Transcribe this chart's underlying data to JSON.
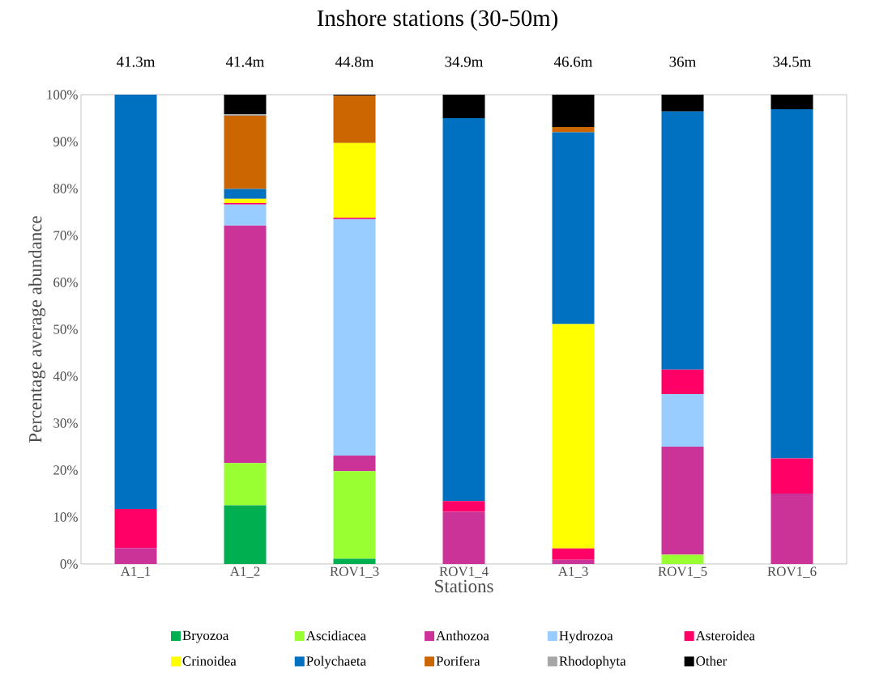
{
  "chart_data": {
    "type": "bar",
    "stacked": true,
    "title": "Inshore stations (30-50m)",
    "xlabel": "Stations",
    "ylabel": "Percentage average abundance",
    "categories": [
      "A1_1",
      "A1_2",
      "ROV1_3",
      "ROV1_4",
      "A1_3",
      "ROV1_5",
      "ROV1_6"
    ],
    "ylim": [
      0,
      100
    ],
    "yticks": [
      {
        "value": 0,
        "label": "0%"
      },
      {
        "value": 10,
        "label": "10%"
      },
      {
        "value": 20,
        "label": "20%"
      },
      {
        "value": 30,
        "label": "30%"
      },
      {
        "value": 40,
        "label": "40%"
      },
      {
        "value": 50,
        "label": "50%"
      },
      {
        "value": 60,
        "label": "60%"
      },
      {
        "value": 70,
        "label": "70%"
      },
      {
        "value": 80,
        "label": "80%"
      },
      {
        "value": 90,
        "label": "90%"
      },
      {
        "value": 100,
        "label": "100%"
      }
    ],
    "legend": "bottom",
    "series": [
      {
        "name": "Bryozoa",
        "color": "#00b050",
        "values": [
          0,
          12.5,
          1.1,
          0,
          0,
          0,
          0
        ]
      },
      {
        "name": "Ascidiacea",
        "color": "#99ff33",
        "values": [
          0,
          9.0,
          18.7,
          0,
          0,
          2.0,
          0
        ]
      },
      {
        "name": "Anthozoa",
        "color": "#cc3399",
        "values": [
          3.4,
          50.6,
          3.3,
          11.1,
          0.9,
          23.0,
          15.0
        ]
      },
      {
        "name": "Hydrozoa",
        "color": "#99ccff",
        "values": [
          0,
          4.5,
          50.4,
          0,
          0,
          11.2,
          0
        ]
      },
      {
        "name": "Asteroidea",
        "color": "#ff0066",
        "values": [
          8.3,
          0.3,
          0.3,
          2.3,
          2.4,
          5.2,
          7.5
        ]
      },
      {
        "name": "Crinoidea",
        "color": "#ffff00",
        "values": [
          0,
          0.9,
          15.9,
          0,
          47.8,
          0,
          0
        ]
      },
      {
        "name": "Polychaeta",
        "color": "#0070c0",
        "values": [
          88.3,
          2.1,
          0,
          81.6,
          40.9,
          55.0,
          74.4
        ]
      },
      {
        "name": "Porifera",
        "color": "#cc6600",
        "values": [
          0,
          15.6,
          10.1,
          0,
          1.1,
          0,
          0
        ]
      },
      {
        "name": "Rhodophyta",
        "color": "#a6a6a6",
        "values": [
          0,
          0.3,
          0,
          0,
          0,
          0,
          0
        ]
      },
      {
        "name": "Other",
        "color": "#000000",
        "values": [
          0,
          4.2,
          0.2,
          5.0,
          6.9,
          3.6,
          3.1
        ]
      }
    ],
    "annotations": [
      "41.3m",
      "41.4m",
      "44.8m",
      "34.9m",
      "46.6m",
      "36m",
      "34.5m"
    ]
  }
}
